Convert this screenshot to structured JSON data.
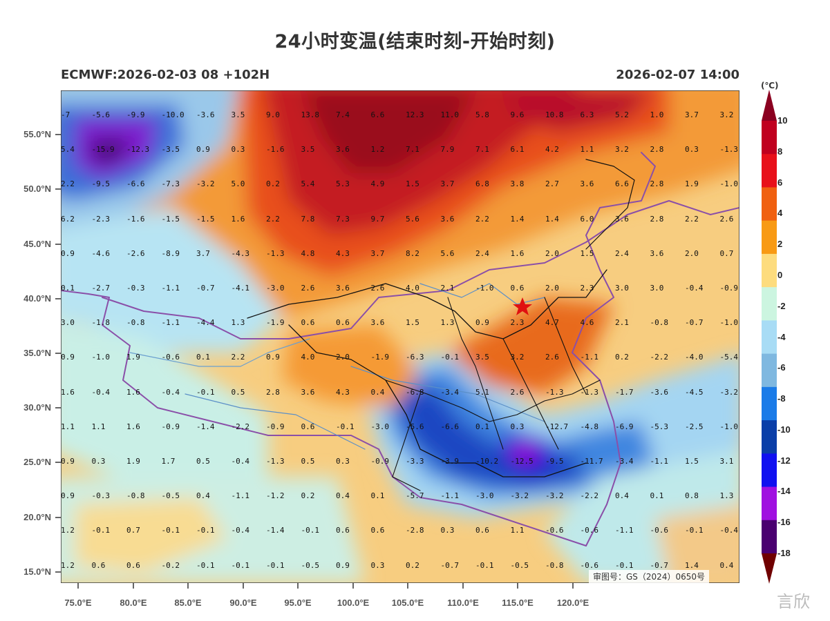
{
  "title": "24小时变温(结束时刻-开始时刻)",
  "model_run": "ECMWF:2026-02-03 08 +102H",
  "valid_time": "2026-02-07 14:00",
  "review_number": "审图号：GS（2024）0650号",
  "watermark": "言欣",
  "colorbar": {
    "unit": "(℃)",
    "labels": [
      "10",
      "8",
      "6",
      "4",
      "2",
      "0",
      "-2",
      "-4",
      "-6",
      "-8",
      "-10",
      "-12",
      "-14",
      "-16",
      "-18"
    ],
    "colors": [
      "#8b0020",
      "#c0001f",
      "#e8101a",
      "#f06010",
      "#f89a14",
      "#fddc7e",
      "#ccf5e0",
      "#a8dcf5",
      "#7fb8e0",
      "#1a7be8",
      "#0a3ea8",
      "#1010f0",
      "#a010e0",
      "#4a0070",
      "#700000"
    ]
  },
  "axes": {
    "lat_labels": [
      "55.0°N",
      "50.0°N",
      "45.0°N",
      "40.0°N",
      "35.0°N",
      "30.0°N",
      "25.0°N",
      "20.0°N",
      "15.0°N"
    ],
    "lon_labels": [
      "75.0°E",
      "80.0°E",
      "85.0°E",
      "90.0°E",
      "95.0°E",
      "100.0°E",
      "105.0°E",
      "110.0°E",
      "115.0°E",
      "120.0°E"
    ]
  },
  "grid_values": [
    [
      "-7",
      "-5.6",
      "-9.9",
      "-10.0",
      "-3.6",
      "3.5",
      "9.0",
      "13.8",
      "7.4",
      "6.6",
      "12.3",
      "11.0",
      "5.8",
      "9.6",
      "10.8",
      "6.3",
      "5.2",
      "1.0",
      "3.7",
      "3.2"
    ],
    [
      "5.4",
      "-15.9",
      "-12.3",
      "-3.5",
      "0.9",
      "0.3",
      "-1.6",
      "3.5",
      "3.6",
      "1.2",
      "7.1",
      "7.9",
      "7.1",
      "6.1",
      "4.2",
      "1.1",
      "3.2",
      "2.8",
      "0.3",
      "-1.3"
    ],
    [
      "2.2",
      "-9.5",
      "-6.6",
      "-7.3",
      "-3.2",
      "5.0",
      "0.2",
      "5.4",
      "5.3",
      "4.9",
      "1.5",
      "3.7",
      "6.8",
      "3.8",
      "2.7",
      "3.6",
      "6.6",
      "2.8",
      "1.9",
      "-1.0"
    ],
    [
      "6.2",
      "-2.3",
      "-1.6",
      "-1.5",
      "-1.5",
      "1.6",
      "2.2",
      "7.8",
      "7.3",
      "9.7",
      "5.6",
      "3.6",
      "2.2",
      "1.4",
      "1.4",
      "6.0",
      "3.6",
      "2.8",
      "2.2",
      "2.6"
    ],
    [
      "0.9",
      "-4.6",
      "-2.6",
      "-8.9",
      "3.7",
      "-4.3",
      "-1.3",
      "4.8",
      "4.3",
      "3.7",
      "8.2",
      "5.6",
      "2.4",
      "1.6",
      "2.0",
      "1.5",
      "2.4",
      "3.6",
      "2.0",
      "0.7"
    ],
    [
      "0.1",
      "-2.7",
      "-0.3",
      "-1.1",
      "-0.7",
      "-4.1",
      "-3.0",
      "2.6",
      "3.6",
      "2.6",
      "4.0",
      "2.1",
      "-1.0",
      "0.6",
      "2.0",
      "2.3",
      "3.0",
      "3.0",
      "-0.4",
      "-0.9"
    ],
    [
      "3.0",
      "-1.8",
      "-0.8",
      "-1.1",
      "-4.4",
      "1.3",
      "-1.9",
      "0.6",
      "0.6",
      "3.6",
      "1.5",
      "1.3",
      "0.9",
      "2.3",
      "4.7",
      "4.6",
      "2.1",
      "-0.8",
      "-0.7",
      "-1.0"
    ],
    [
      "0.9",
      "-1.0",
      "1.9",
      "-0.6",
      "0.1",
      "2.2",
      "0.9",
      "4.0",
      "2.0",
      "-1.9",
      "-6.3",
      "-0.1",
      "3.5",
      "3.2",
      "2.6",
      "-1.1",
      "0.2",
      "-2.2",
      "-4.0",
      "-5.4"
    ],
    [
      "1.6",
      "-0.4",
      "1.6",
      "-0.4",
      "-0.1",
      "0.5",
      "2.8",
      "3.6",
      "4.3",
      "0.4",
      "-6.8",
      "-3.4",
      "5.1",
      "2.6",
      "-1.3",
      "-1.3",
      "-1.7",
      "-3.6",
      "-4.5",
      "-3.2"
    ],
    [
      "1.1",
      "1.1",
      "1.6",
      "-0.9",
      "-1.4",
      "-2.2",
      "-0.9",
      "0.6",
      "-0.1",
      "-3.0",
      "-5.6",
      "-6.6",
      "0.1",
      "0.3",
      "-12.7",
      "-4.8",
      "-6.9",
      "-5.3",
      "-2.5",
      "-1.0"
    ],
    [
      "0.9",
      "0.3",
      "1.9",
      "1.7",
      "0.5",
      "-0.4",
      "-1.3",
      "0.5",
      "0.3",
      "-0.9",
      "-3.3",
      "-3.9",
      "-10.2",
      "-12.5",
      "-9.5",
      "-11.7",
      "-3.4",
      "-1.1",
      "1.5",
      "3.1"
    ],
    [
      "0.9",
      "-0.3",
      "-0.8",
      "-0.5",
      "0.4",
      "-1.1",
      "-1.2",
      "0.2",
      "0.4",
      "0.1",
      "-5.7",
      "-1.1",
      "-3.0",
      "-3.2",
      "-3.2",
      "-2.2",
      "0.4",
      "0.1",
      "0.8",
      "1.3"
    ],
    [
      "1.2",
      "-0.1",
      "0.7",
      "-0.1",
      "-0.1",
      "-0.4",
      "-1.4",
      "-0.1",
      "0.6",
      "0.6",
      "-2.8",
      "0.3",
      "0.6",
      "1.1",
      "-0.6",
      "-0.6",
      "-1.1",
      "-0.6",
      "-0.1",
      "-0.4"
    ],
    [
      "1.2",
      "0.6",
      "0.6",
      "-0.2",
      "-0.1",
      "-0.1",
      "-0.1",
      "-0.5",
      "0.9",
      "0.3",
      "0.2",
      "-0.7",
      "-0.1",
      "-0.5",
      "-0.8",
      "-0.6",
      "-0.1",
      "-0.7",
      "1.4",
      "0.4"
    ]
  ]
}
